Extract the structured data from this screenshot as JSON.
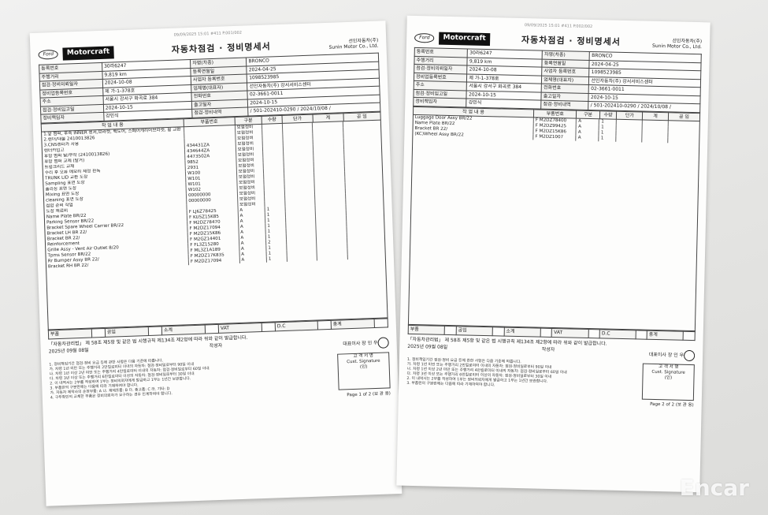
{
  "watermark": "Encar",
  "pages": [
    {
      "fax": "09/09/2025 15:01  #411 P.001/002",
      "ford": "Ford",
      "brand": "Motorcraft",
      "title": "자동차점검 · 정비명세서",
      "company": "선인자동차(주)",
      "company_en": "Sunin Motor Co., Ltd.",
      "info": [
        [
          "등록번호",
          "30라6247",
          "차명(차종)",
          "BRONCO"
        ],
        [
          "주행거리",
          "9,819 km",
          "등록연월일",
          "2024-04-25"
        ],
        [
          "점검·정비의뢰일자",
          "2024-10-08",
          "사업자 등록번호",
          "1098523985"
        ],
        [
          "정비업등록번호",
          "제 가-1-378호",
          "업체명(대표자)",
          "선인자동차(주) 강서서비스센터"
        ],
        [
          "주소",
          "서울시 강서구 화곡로 384",
          "전화번호",
          "02-3661-0011"
        ],
        [
          "점검·정비입고일",
          "2024-10-15",
          "출고일자",
          "2024-10-15"
        ],
        [
          "정비책임자",
          "강민식",
          "점검·정비내역",
          "/ 501-202410-0290 / 2024/10/08 /"
        ]
      ],
      "table_head": [
        "작 업 내 용",
        "부품번호",
        "구분",
        "수량",
        "단가",
        "계",
        "공 임"
      ],
      "items": [
        [
          "1.앞 범퍼, 후측 INNER 센서,브라켓, 백도어, 스페어캐리어브라켓, 휠 교환",
          "",
          "보험정비",
          ""
        ],
        [
          "2.렌더/대물 2410013826",
          "",
          "보험정비",
          ""
        ],
        [
          "3.CNS렌터카 사용",
          "",
          "보험정비",
          ""
        ],
        [
          "렌터카입고",
          "434431ZA",
          "보험정비",
          ""
        ],
        [
          "후방 범퍼 탈/부착 (2410013826)",
          "434644ZA",
          "보험정비",
          ""
        ],
        [
          "후방 범퍼 교체 (탈거)",
          "4473502A",
          "보험정비",
          ""
        ],
        [
          "트렁크리드 교체",
          "9852",
          "보험정비",
          ""
        ],
        [
          "수리 후 오류 메모리 제정 판독",
          "2931",
          "보험정비",
          ""
        ],
        [
          "TRUNK LID 교환 도장",
          "W100",
          "보험정비",
          ""
        ],
        [
          "Sampling 표면 도장",
          "W101",
          "보험정비",
          ""
        ],
        [
          "폴리싱 표면 도장",
          "W101",
          "보험정비",
          ""
        ],
        [
          "Mixing 표면 도장",
          "W102",
          "보험정비",
          ""
        ],
        [
          "cleaning 표면 도장",
          "00000000",
          "보험정비",
          ""
        ],
        [
          "접합 준비 작업",
          "00000000",
          "보험정비",
          ""
        ],
        [
          "도장 재료비",
          "",
          "보험정비",
          ""
        ],
        [
          "Name Plate BR/22",
          "F LJ6Z78425",
          "A",
          "1"
        ],
        [
          "Parking Sensor BR/22",
          "F KU5Z15K85",
          "A",
          "1"
        ],
        [
          "Bracket Spare Wheel Carrier BR/22",
          "F M2DZ78470",
          "A",
          "1"
        ],
        [
          "Bracket LH BR 22/",
          "F M2DZ17094",
          "A",
          "1"
        ],
        [
          "Bracket BR 22/",
          "F M2DZ15K86",
          "A",
          "1"
        ],
        [
          "Reinforcement",
          "F M2GZ14401",
          "A",
          "1"
        ],
        [
          "Grille Assy - Vent Air Outlet 8/20",
          "F FL3Z15280",
          "A",
          "2"
        ],
        [
          "Tpms Sensor BR/22",
          "F ML3Z1A189",
          "A",
          "1"
        ],
        [
          "Rr Bumper Assy BR 22/",
          "F M2DZ17K835",
          "A",
          "1"
        ],
        [
          "Bracket RH BR 22/",
          "F M2DZ17094",
          "A",
          "1"
        ]
      ],
      "totals": [
        "부품",
        "공임",
        "소계",
        "VAT",
        "D.C",
        "총계"
      ],
      "legal": "「자동차관리법」 제 58조 제5항 및 같은 법 시행규칙 제134조 제2항에 따라 위와 같이 발급합니다.",
      "date": "2025년 09월 08일",
      "writer": "작성자",
      "ceo": "대표이사 장 인 우",
      "notes": [
        "1. 정비책임기간 점검·정비 요금 등에 관한 사항은 다음 기준에 따릅니다.",
        "가. 차령 1년 미만 또는 주행거리 2만킬로미터 이내의 자동차: 점검·정비일로부터 90일 이내",
        "나. 차령 1년 이상 2년 미만 또는 주행거리 4만킬로미터 이내의 자동차: 점검·정비일로부터 60일 이내",
        "다. 차령 3년 이상 또는 주행거리 6만킬로미터 이상의 자동차: 점검·정비일로부터 30일 이내",
        "2. 이 내역서는 2부를 작성하여 1부는 정비의뢰자에게 발급하고 1부는 1년간 보관합니다.",
        "3. 부품란의 구분란에는 다음에 따라 기재하여야 합니다.",
        "가. 자동차 제작사의 순정부품: A  나. 재제조품: B  다. 중고품: C  라. 기타: D",
        "4. 구두확인의 교체한 부품은 정비의뢰자가 요구하는 경우 인계하여야 합니다."
      ],
      "sign": [
        "고 객 서 명",
        "Cust. Signature",
        "(인)"
      ],
      "page_no": "Page 1 of 2 (보 관 용)"
    },
    {
      "fax": "09/09/2025 15:01  #411 P.002/002",
      "ford": "Ford",
      "brand": "Motorcraft",
      "title": "자동차점검 · 정비명세서",
      "company": "선인자동차(주)",
      "company_en": "Sunin Motor Co., Ltd.",
      "info": [
        [
          "등록번호",
          "30라6247",
          "차명(차종)",
          "BRONCO"
        ],
        [
          "주행거리",
          "9,819 km",
          "등록연월일",
          "2024-04-25"
        ],
        [
          "점검·정비의뢰일자",
          "2024-10-08",
          "사업자 등록번호",
          "1098523985"
        ],
        [
          "정비업등록번호",
          "제 가-1-378호",
          "업체명(대표자)",
          "선인자동차(주) 강서서비스센터"
        ],
        [
          "주소",
          "서울시 강서구 화곡로 384",
          "전화번호",
          "02-3661-0011"
        ],
        [
          "점검·정비입고일",
          "2024-10-15",
          "출고일자",
          "2024-10-15"
        ],
        [
          "정비책임자",
          "강민식",
          "점검·정비내역",
          "/ 501-202410-0290 / 2024/10/08 /"
        ]
      ],
      "table_head": [
        "작 업 내 용",
        "부품번호",
        "구분",
        "수량",
        "단가",
        "계",
        "공 임"
      ],
      "items": [
        [
          "Luggage Door Assy BR/22",
          "F M2DZ78400",
          "A",
          "1"
        ],
        [
          "Name Plate BR/22",
          "F M2DZ99425",
          "A",
          "1"
        ],
        [
          "Bracket BR 22/",
          "F M2DZ15K86",
          "A",
          "1"
        ],
        [
          "(KC)Wheel Assy BR/22",
          "F M2DZ1007",
          "A",
          "1"
        ]
      ],
      "totals": [
        "부품",
        "공임",
        "소계",
        "VAT",
        "D.C",
        "총계"
      ],
      "legal": "「자동차관리법」 제 58조 제5항 및 같은 법 시행규칙 제134조 제2항에 따라 위와 같이 발급합니다.",
      "date": "2025년 09월 08일",
      "writer": "작성자",
      "ceo": "대표이사 장 인 우",
      "notes": [
        "1. 정비책임기간 점검·정비 요금 등에 관한 사항은 다음 기준에 따릅니다.",
        "가. 차령 1년 미만 또는 주행거리 2만킬로미터 이내의 자동차: 점검·정비일로부터 90일 이내",
        "나. 차령 1년 이상 2년 미만 또는 주행거리 4만킬로미터 이내의 자동차: 점검·정비일로부터 60일 이내",
        "다. 차령 3년 이상 또는 주행거리 6만킬로미터 이상의 자동차: 점검·정비일로부터 30일 이내",
        "2. 이 내역서는 2부를 작성하여 1부는 정비의뢰자에게 발급하고 1부는 1년간 보관합니다.",
        "3. 부품란의 구분란에는 다음에 따라 기재하여야 합니다."
      ],
      "sign": [
        "고 객 서 명",
        "Cust. Signature",
        "(인)"
      ],
      "page_no": "Page 2 of 2 (보 관 용)"
    }
  ]
}
